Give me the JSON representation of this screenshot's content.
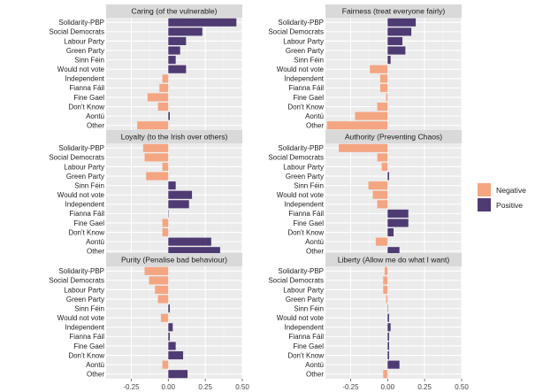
{
  "chart_data": {
    "type": "bar",
    "orientation": "horizontal",
    "facet_layout": {
      "rows": 3,
      "cols": 2
    },
    "categories": [
      "Solidarity-PBP",
      "Social Democrats",
      "Labour Party",
      "Green Party",
      "Sinn Féin",
      "Would not vote",
      "Independent",
      "Fianna Fáil",
      "Fine Gael",
      "Don't Know",
      "Aontú",
      "Other"
    ],
    "xlim": [
      -0.42,
      0.5
    ],
    "xticks": [
      -0.25,
      0.0,
      0.25,
      0.5
    ],
    "xtick_labels": [
      "-0.25",
      "0.00",
      "0.25",
      "0.50"
    ],
    "grid": true,
    "xlabel": "",
    "ylabel": "",
    "legend": {
      "position": "right",
      "entries": [
        {
          "label": "Negative",
          "color": "#F4A582"
        },
        {
          "label": "Positive",
          "color": "#4F3B73"
        }
      ]
    },
    "panels": [
      {
        "title": "Caring (of the vulnerable)",
        "values": [
          0.46,
          0.23,
          0.12,
          0.08,
          0.05,
          0.12,
          -0.04,
          -0.06,
          -0.14,
          -0.07,
          0.01,
          -0.21
        ]
      },
      {
        "title": "Fairness (treat everyone fairly)",
        "values": [
          0.19,
          0.16,
          0.1,
          0.12,
          0.02,
          -0.12,
          -0.05,
          -0.05,
          -0.01,
          -0.07,
          -0.22,
          -0.41
        ]
      },
      {
        "title": "Loyalty (to the Irish over others)",
        "values": [
          -0.17,
          -0.16,
          -0.04,
          -0.15,
          0.05,
          0.16,
          0.14,
          0.0,
          -0.04,
          -0.04,
          0.29,
          0.35
        ]
      },
      {
        "title": "Authority (Preventing Chaos)",
        "values": [
          -0.33,
          -0.07,
          -0.04,
          0.01,
          -0.13,
          -0.1,
          -0.07,
          0.14,
          0.14,
          0.04,
          -0.08,
          0.08
        ]
      },
      {
        "title": "Purity (Penalise bad behaviour)",
        "values": [
          -0.16,
          -0.13,
          -0.09,
          -0.07,
          0.01,
          -0.05,
          0.03,
          0.01,
          0.05,
          0.1,
          -0.04,
          0.13
        ]
      },
      {
        "title": "Liberty (Allow me do what I want)",
        "values": [
          -0.02,
          -0.03,
          -0.03,
          -0.01,
          0.0,
          0.01,
          0.02,
          0.01,
          0.01,
          0.01,
          0.08,
          -0.03
        ]
      }
    ]
  }
}
